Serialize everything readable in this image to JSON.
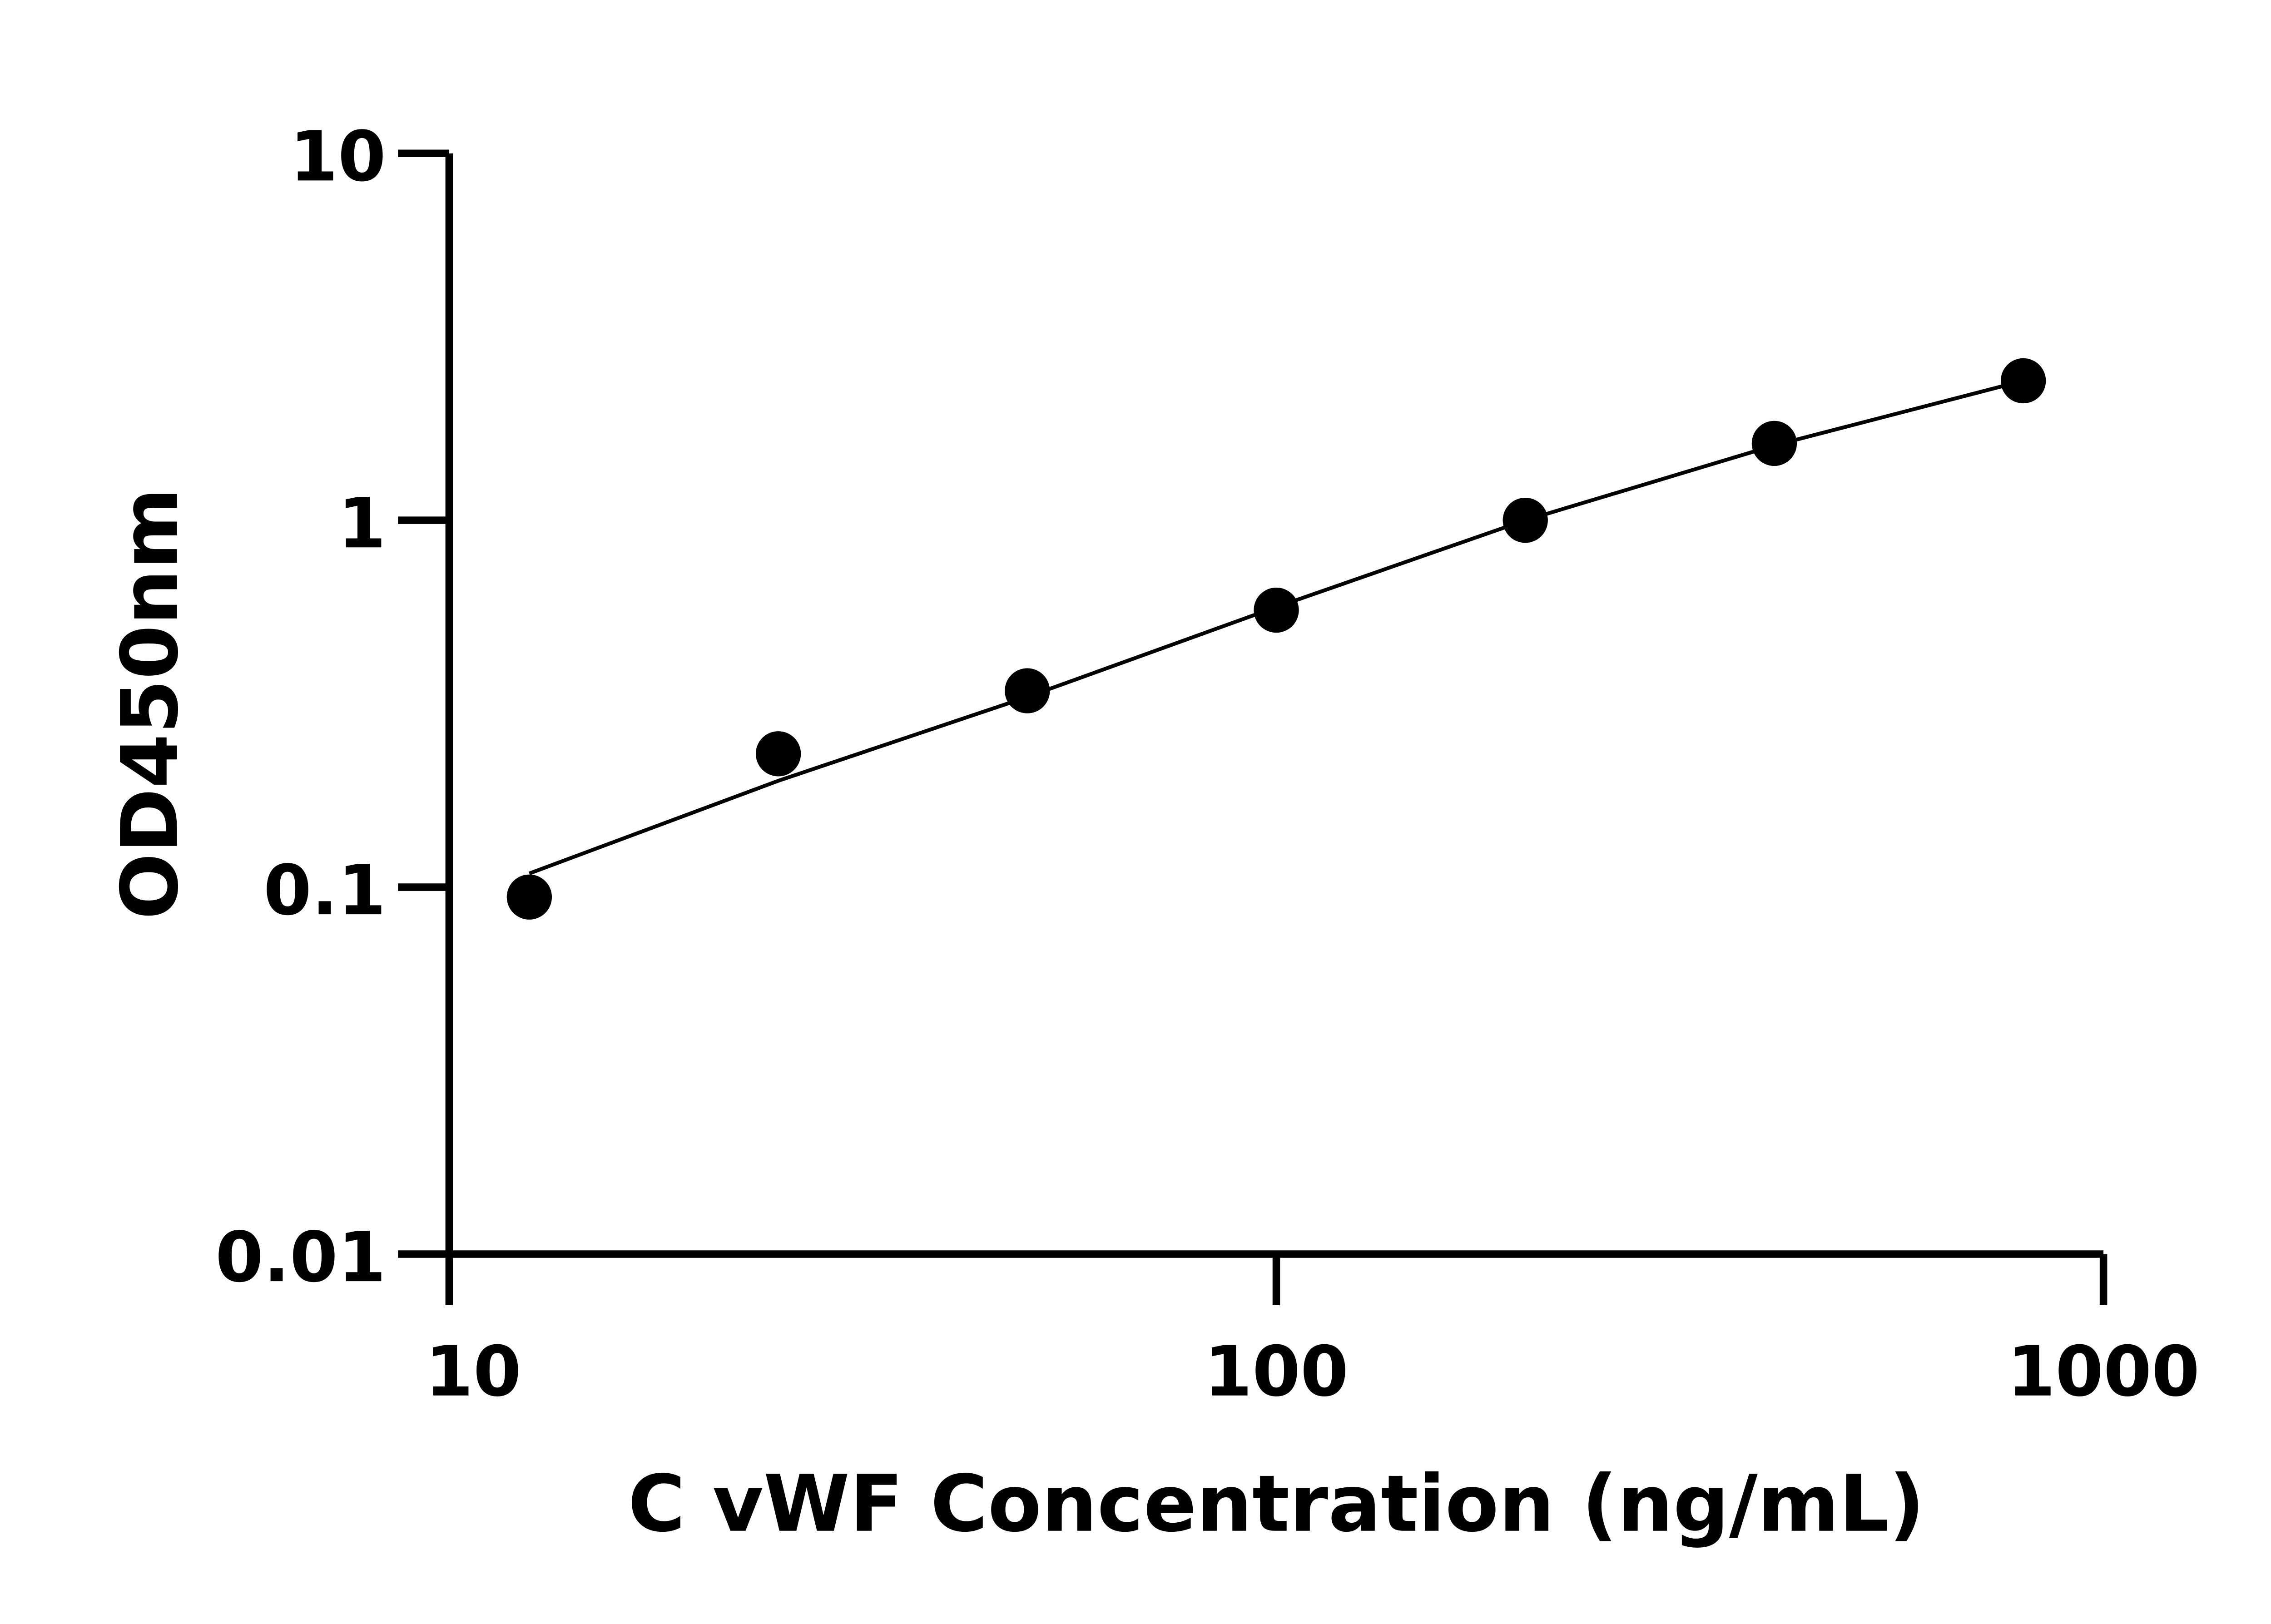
{
  "chart_data": {
    "type": "scatter",
    "title": "",
    "xlabel": "C vWF Concentration (ng/mL)",
    "ylabel": "OD450nm",
    "x_scale": "log",
    "y_scale": "log",
    "xlim": [
      10,
      1000
    ],
    "ylim": [
      0.01,
      10
    ],
    "x_ticks": [
      10,
      100,
      1000
    ],
    "x_tick_labels": [
      "10",
      "100",
      "1000"
    ],
    "y_ticks": [
      0.01,
      0.1,
      1,
      10
    ],
    "y_tick_labels": [
      "0.01",
      "0.1",
      "1",
      "10"
    ],
    "grid": false,
    "legend": "none",
    "points": {
      "x": [
        12.5,
        25,
        50,
        100,
        200,
        400,
        800
      ],
      "y": [
        0.094,
        0.231,
        0.343,
        0.569,
        1.0,
        1.62,
        2.4
      ]
    },
    "fit_line": {
      "x": [
        12.5,
        25,
        50,
        100,
        200,
        400,
        800
      ],
      "y": [
        0.109,
        0.195,
        0.33,
        0.58,
        1.0,
        1.6,
        2.4
      ]
    },
    "colors": {
      "marks": "#000000",
      "axes": "#000000"
    }
  }
}
